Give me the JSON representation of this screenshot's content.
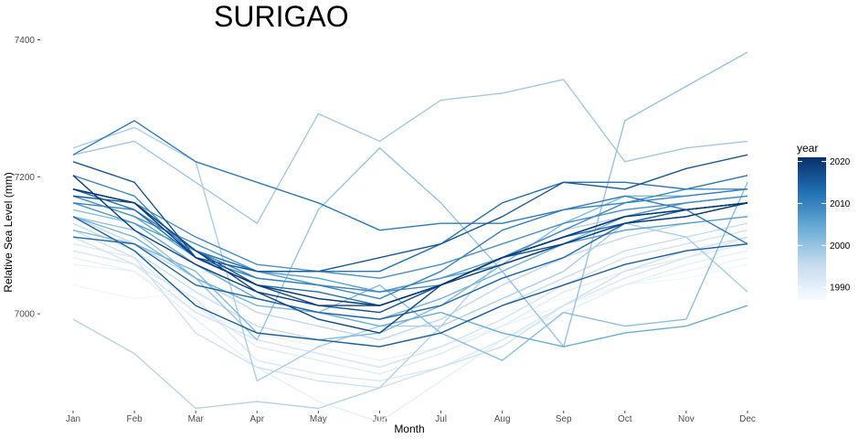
{
  "chart_data": {
    "type": "line",
    "title": "SURIGAO",
    "xlabel": "Month",
    "ylabel": "Relative Sea Level (mm)",
    "categories": [
      "Jan",
      "Feb",
      "Mar",
      "Apr",
      "May",
      "Jun",
      "Jul",
      "Aug",
      "Sep",
      "Oct",
      "Nov",
      "Dec"
    ],
    "ylim": [
      6860,
      7410
    ],
    "yticks": [
      7000,
      7200,
      7400
    ],
    "grid": false,
    "legend": {
      "title": "year",
      "position": "right",
      "type": "colorbar",
      "range": [
        1987,
        2021
      ],
      "ticks": [
        1990,
        2000,
        2010,
        2020
      ],
      "colors": [
        "#f7fbff",
        "#c6dbef",
        "#6baed6",
        "#2171b5",
        "#08306b"
      ]
    },
    "series": [
      {
        "year": 1988,
        "values": [
          7042,
          7022,
          7032,
          7002,
          6982,
          6962,
          6982,
          7002,
          7022,
          7042,
          7052,
          7072
        ]
      },
      {
        "year": 1989,
        "values": [
          7072,
          7062,
          7002,
          6972,
          6952,
          6932,
          6952,
          6982,
          7012,
          7042,
          7062,
          7082
        ]
      },
      {
        "year": 1990,
        "values": [
          7082,
          7062,
          6992,
          6922,
          6872,
          6842,
          6902,
          6962,
          7002,
          7042,
          7072,
          7092
        ]
      },
      {
        "year": 1991,
        "values": [
          7102,
          7082,
          7012,
          6952,
          6932,
          6912,
          6942,
          6982,
          7032,
          7062,
          7082,
          7102
        ]
      },
      {
        "year": 1992,
        "values": [
          7092,
          7072,
          7022,
          6932,
          6912,
          6902,
          6922,
          6962,
          7012,
          7052,
          7082,
          7112
        ]
      },
      {
        "year": 1993,
        "values": [
          7112,
          7072,
          7002,
          6962,
          6942,
          6922,
          6952,
          6992,
          7042,
          7082,
          7102,
          7122
        ]
      },
      {
        "year": 1994,
        "values": [
          7122,
          7082,
          6972,
          6922,
          6902,
          6892,
          6922,
          6952,
          7012,
          7062,
          7092,
          7112
        ]
      },
      {
        "year": 1995,
        "values": [
          7132,
          7092,
          7032,
          6982,
          6962,
          6952,
          6972,
          7012,
          7052,
          7092,
          7112,
          7132
        ]
      },
      {
        "year": 1996,
        "values": [
          7142,
          7102,
          7052,
          7002,
          6982,
          6962,
          6992,
          7042,
          7082,
          7112,
          7132,
          7142
        ]
      },
      {
        "year": 1997,
        "values": [
          6992,
          6942,
          6862,
          6872,
          6862,
          6892,
          6982,
          7082,
          7122,
          7142,
          7152,
          7162
        ]
      },
      {
        "year": 1998,
        "values": [
          7242,
          7272,
          7222,
          6902,
          6952,
          6982,
          6982,
          7022,
          7062,
          7132,
          7112,
          7032
        ]
      },
      {
        "year": 1999,
        "values": [
          7232,
          7252,
          7192,
          7132,
          7292,
          7252,
          7312,
          7322,
          7342,
          7222,
          7242,
          7252
        ]
      },
      {
        "year": 2000,
        "values": [
          7142,
          7122,
          7052,
          6962,
          7152,
          7242,
          7162,
          7062,
          6952,
          7282,
          7332,
          7382
        ]
      },
      {
        "year": 2001,
        "values": [
          7152,
          7132,
          7072,
          7022,
          7002,
          7042,
          6972,
          6932,
          7002,
          6982,
          6992,
          7192
        ]
      },
      {
        "year": 2002,
        "values": [
          7122,
          7102,
          7062,
          6972,
          6962,
          6972,
          7012,
          7072,
          7132,
          7172,
          7172,
          7182
        ]
      },
      {
        "year": 2003,
        "values": [
          7142,
          7112,
          7052,
          7012,
          7002,
          6992,
          7022,
          7062,
          7102,
          7142,
          7162,
          7172
        ]
      },
      {
        "year": 2004,
        "values": [
          7162,
          7132,
          7072,
          7022,
          7002,
          6982,
          7002,
          6972,
          6952,
          6972,
          6982,
          7012
        ]
      },
      {
        "year": 2005,
        "values": [
          7172,
          7142,
          7082,
          7042,
          7022,
          7012,
          7042,
          7082,
          7112,
          7142,
          7152,
          7162
        ]
      },
      {
        "year": 2006,
        "values": [
          7162,
          7132,
          7092,
          7062,
          7052,
          7032,
          7052,
          7072,
          7102,
          7122,
          7132,
          7142
        ]
      },
      {
        "year": 2007,
        "values": [
          7172,
          7142,
          7102,
          7062,
          7042,
          7032,
          7052,
          7082,
          7112,
          7142,
          7162,
          7172
        ]
      },
      {
        "year": 2008,
        "values": [
          7182,
          7162,
          7112,
          7072,
          7062,
          7052,
          7072,
          7102,
          7132,
          7152,
          7162,
          7172
        ]
      },
      {
        "year": 2009,
        "values": [
          7202,
          7172,
          7082,
          7052,
          7042,
          7032,
          7042,
          7082,
          7122,
          7162,
          7182,
          7182
        ]
      },
      {
        "year": 2010,
        "values": [
          7162,
          7152,
          7092,
          7052,
          7042,
          7022,
          7062,
          7122,
          7152,
          7162,
          7172,
          7182
        ]
      },
      {
        "year": 2011,
        "values": [
          7232,
          7282,
          7222,
          7192,
          7162,
          7122,
          7132,
          7132,
          7152,
          7172,
          7152,
          7102
        ]
      },
      {
        "year": 2012,
        "values": [
          7182,
          7162,
          7092,
          7062,
          7062,
          7062,
          7102,
          7162,
          7192,
          7192,
          7182,
          7202
        ]
      },
      {
        "year": 2013,
        "values": [
          7182,
          7152,
          7082,
          7042,
          7032,
          7012,
          7042,
          7082,
          7112,
          7132,
          7152,
          7162
        ]
      },
      {
        "year": 2014,
        "values": [
          7112,
          7102,
          7042,
          7022,
          7002,
          6992,
          7012,
          7052,
          7082,
          7132,
          7152,
          7162
        ]
      },
      {
        "year": 2015,
        "values": [
          7142,
          7092,
          7012,
          6972,
          6962,
          6952,
          6972,
          7012,
          7042,
          7072,
          7092,
          7102
        ]
      },
      {
        "year": 2016,
        "values": [
          7222,
          7192,
          7082,
          7062,
          7062,
          7082,
          7102,
          7142,
          7192,
          7182,
          7212,
          7232
        ]
      },
      {
        "year": 2017,
        "values": [
          7172,
          7162,
          7092,
          7042,
          7012,
          7002,
          7042,
          7082,
          7102,
          7132,
          7142,
          7162
        ]
      },
      {
        "year": 2018,
        "values": [
          7182,
          7162,
          7092,
          7032,
          6992,
          6972,
          7042,
          7082,
          7112,
          7142,
          7152,
          7162
        ]
      },
      {
        "year": 2019,
        "values": [
          7202,
          7122,
          7072,
          7032,
          7012,
          7012,
          7042,
          7072,
          7102,
          7132,
          7142,
          7162
        ]
      },
      {
        "year": 2020,
        "values": [
          7182,
          7162,
          7082,
          7042,
          7022,
          7012,
          7042,
          7082,
          7112,
          7142,
          7152,
          7162
        ]
      }
    ]
  }
}
